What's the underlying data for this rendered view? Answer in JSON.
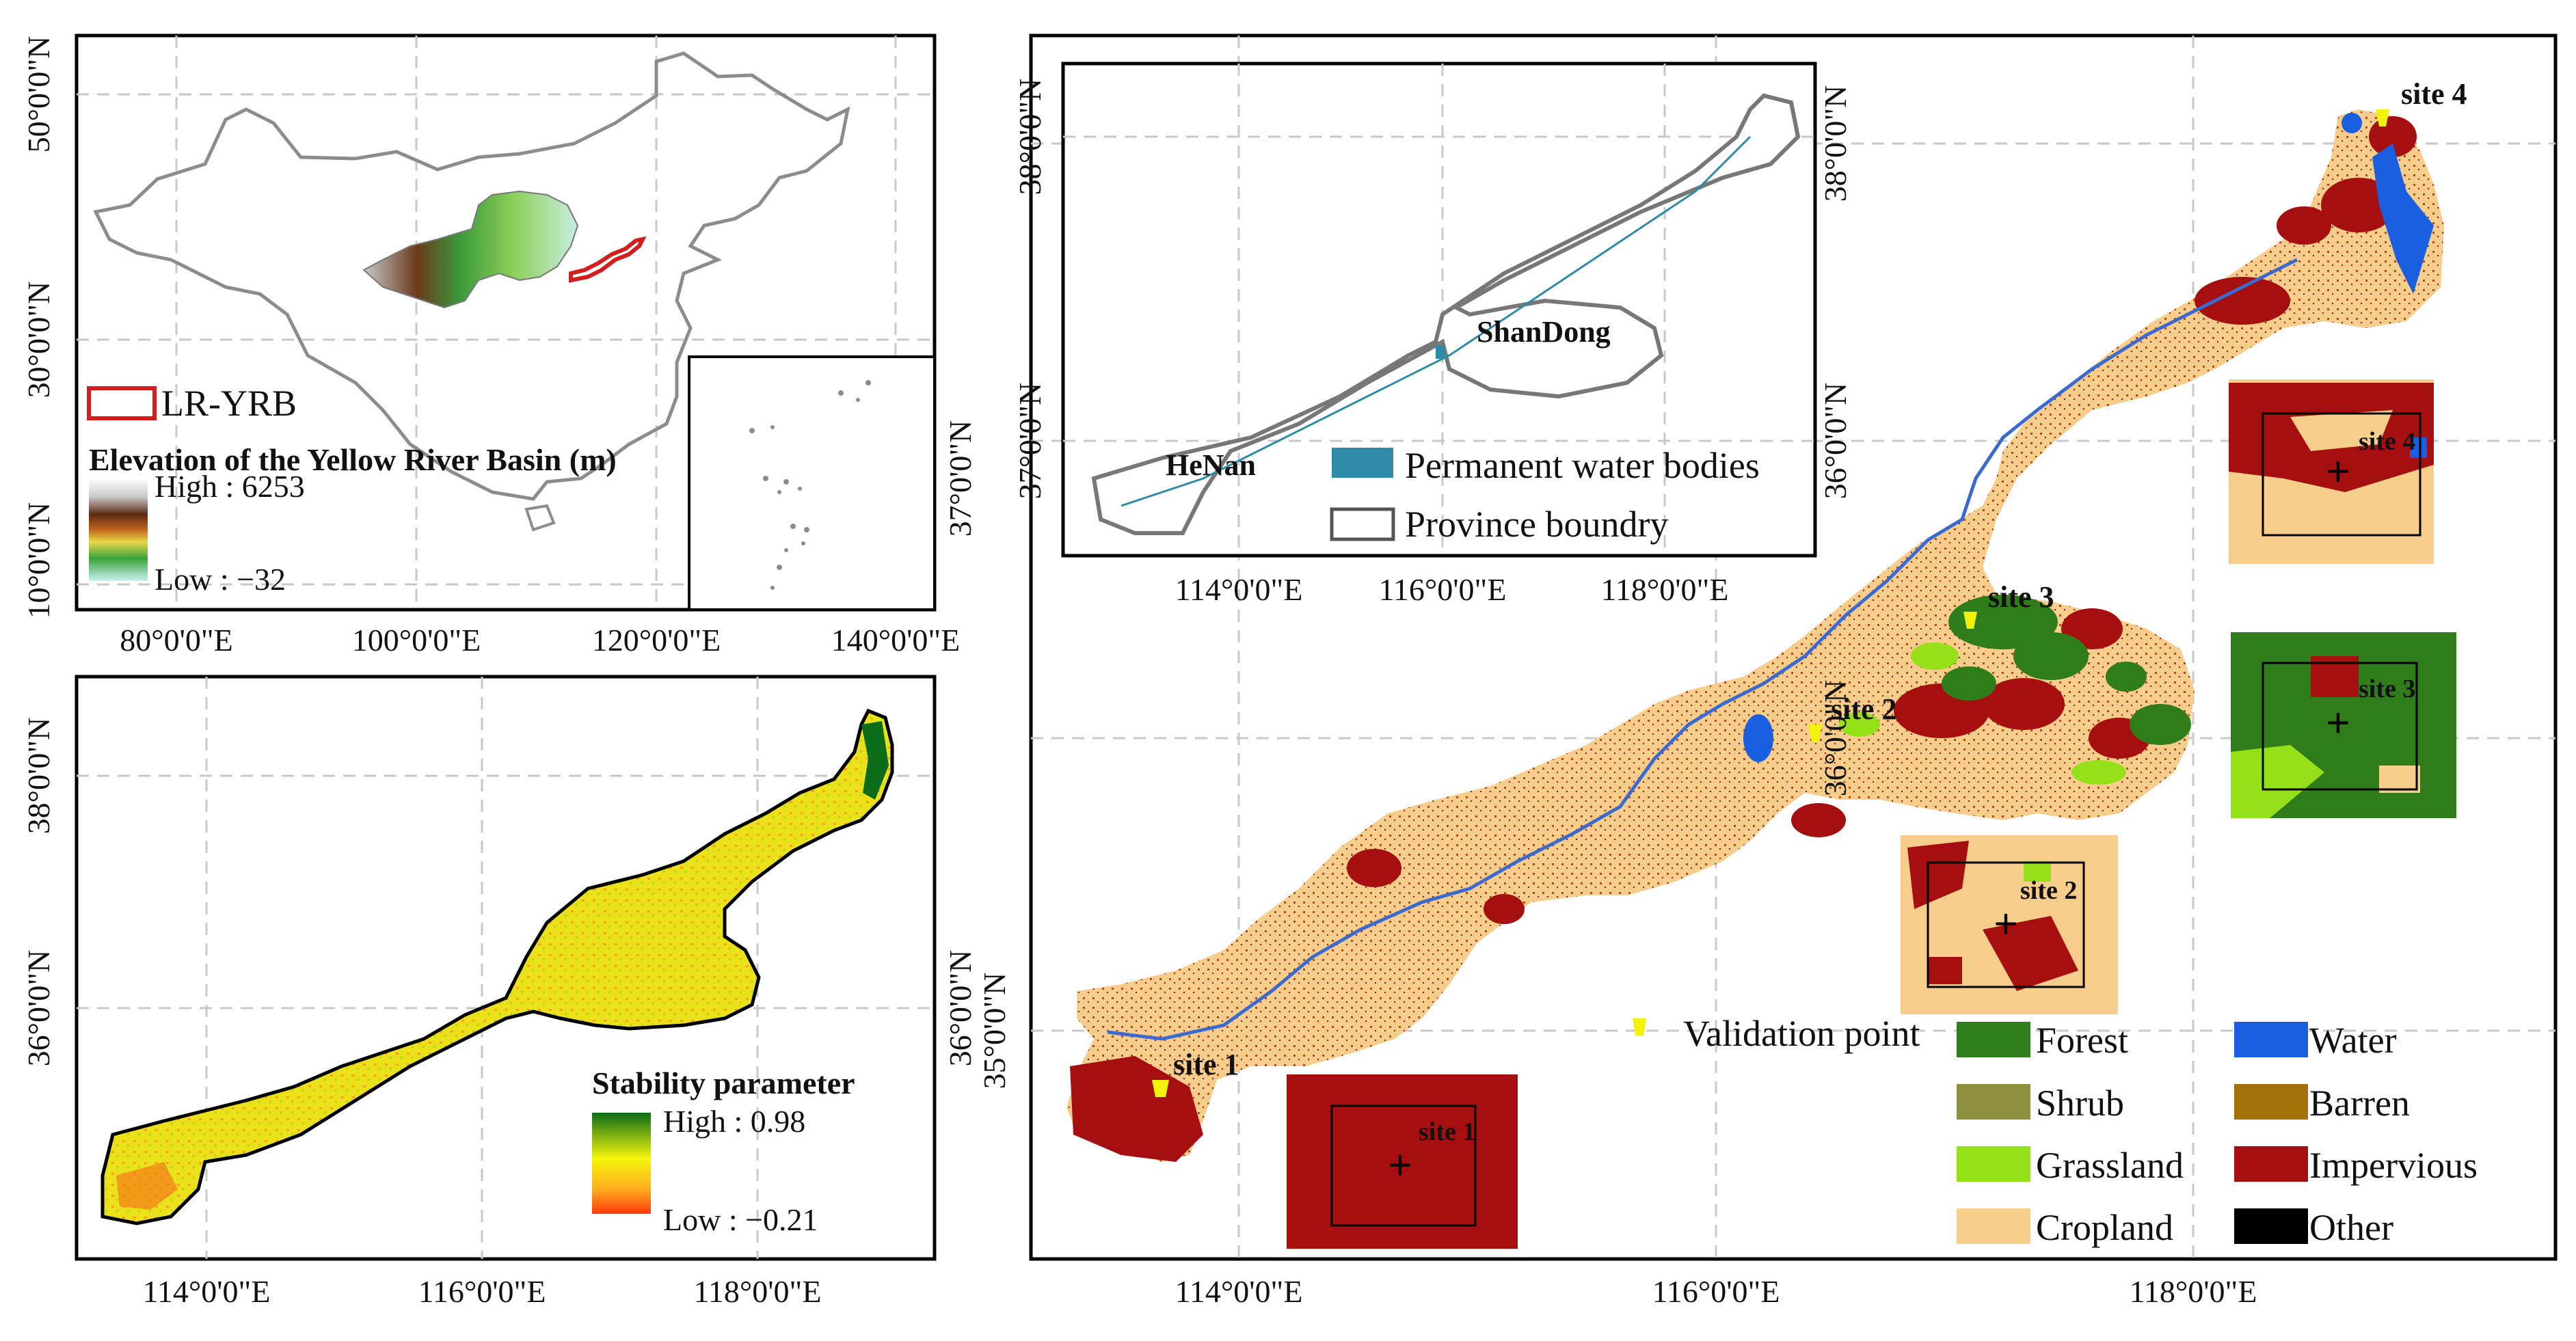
{
  "colors": {
    "forest": "#2e7d1a",
    "shrub": "#8b8f3e",
    "grassland": "#96e01a",
    "cropland": "#f7cd8c",
    "water": "#1a5fe0",
    "barren": "#a3700a",
    "impervious": "#a50f10",
    "other": "#000000",
    "permanent_water": "#2f8aa7",
    "lr_yrb": "#d21e1e",
    "validation": "#f2f20a"
  },
  "panel_a": {
    "legend": {
      "lr_yrb": "LR-YRB",
      "elevation_title": "Elevation of the Yellow River Basin (m)",
      "high": "High : 6253",
      "low": "Low : −32"
    },
    "x_ticks": [
      "80°0'0\"E",
      "100°0'0\"E",
      "120°0'0\"E",
      "140°0'0\"E"
    ],
    "y_ticks_left": [
      "50°0'0\"N",
      "30°0'0\"N",
      "10°0'0\"N"
    ],
    "y_ticks_right": [
      "37°0'0\"N"
    ]
  },
  "panel_b": {
    "legend": {
      "title": "Stability parameter",
      "high": "High : 0.98",
      "low": "Low : −0.21"
    },
    "x_ticks": [
      "114°0'0\"E",
      "116°0'0\"E",
      "118°0'0\"E"
    ],
    "y_ticks": [
      "38°0'0\"N",
      "36°0'0\"N"
    ],
    "y_ticks_right": [
      "36°0'0\"N"
    ]
  },
  "panel_c": {
    "inset": {
      "labels": {
        "henan": "HeNan",
        "shandong": "ShanDong"
      },
      "legend": {
        "water": "Permanent water bodies",
        "boundary": "Province boundry"
      },
      "x_ticks": [
        "114°0'0\"E",
        "116°0'0\"E",
        "118°0'0\"E"
      ],
      "y_ticks": [
        "38°0'0\"N",
        "37°0'0\"N"
      ]
    },
    "sites": [
      "site 1",
      "site 2",
      "site 3",
      "site 4"
    ],
    "x_ticks": [
      "114°0'0\"E",
      "116°0'0\"E",
      "118°0'0\"E"
    ],
    "y_ticks": [
      "38°0'0\"N",
      "36°0'0\"N",
      "35°0'0\"N"
    ],
    "y_ticks_left": [
      "36°0'0\"N"
    ],
    "legend": {
      "validation": "Validation point",
      "forest": "Forest",
      "water": "Water",
      "shrub": "Shrub",
      "barren": "Barren",
      "grassland": "Grassland",
      "impervious": "Impervious",
      "cropland": "Cropland",
      "other": "Other"
    }
  }
}
